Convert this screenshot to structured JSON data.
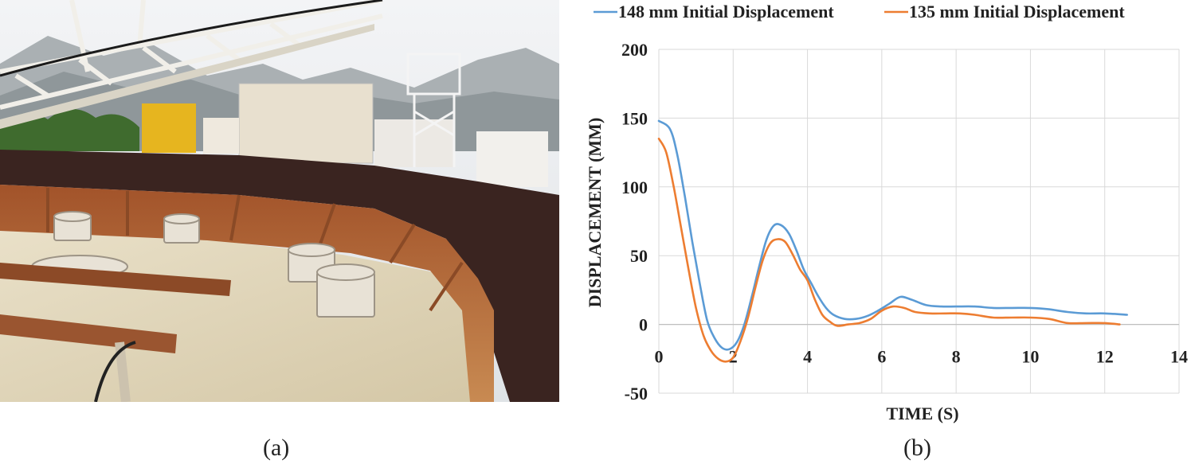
{
  "captions": {
    "a": "(a)",
    "b": "(b)"
  },
  "chart_data": {
    "type": "line",
    "xlabel": "TIME (S)",
    "ylabel": "DISPLACEMENT (MM)",
    "xlim": [
      0,
      14
    ],
    "ylim": [
      -50,
      200
    ],
    "xticks": [
      0,
      2,
      4,
      6,
      8,
      10,
      12,
      14
    ],
    "yticks": [
      -50,
      0,
      50,
      100,
      150,
      200
    ],
    "grid": true,
    "legend_position": "top",
    "series": [
      {
        "name": "148 mm Initial Displacement",
        "color": "#5b9bd5",
        "x": [
          0,
          0.3,
          0.5,
          0.7,
          0.9,
          1.1,
          1.3,
          1.5,
          1.7,
          1.9,
          2.1,
          2.3,
          2.5,
          2.7,
          2.9,
          3.1,
          3.3,
          3.5,
          3.7,
          3.9,
          4.1,
          4.3,
          4.5,
          4.7,
          5.0,
          5.3,
          5.6,
          5.9,
          6.2,
          6.5,
          6.8,
          7.2,
          7.6,
          8.0,
          8.5,
          9.0,
          9.5,
          10.0,
          10.5,
          11.0,
          11.5,
          12.0,
          12.6
        ],
        "y": [
          148,
          142,
          123,
          93,
          60,
          30,
          3,
          -10,
          -17,
          -18,
          -13,
          0,
          20,
          42,
          62,
          72,
          72,
          66,
          54,
          40,
          30,
          20,
          12,
          7,
          4,
          4,
          6,
          10,
          15,
          20,
          18,
          14,
          13,
          13,
          13,
          12,
          12,
          12,
          11,
          9,
          8,
          8,
          7
        ]
      },
      {
        "name": "135 mm Initial Displacement",
        "color": "#ed7d31",
        "x": [
          0,
          0.2,
          0.4,
          0.6,
          0.8,
          1.0,
          1.2,
          1.4,
          1.6,
          1.8,
          2.0,
          2.2,
          2.4,
          2.6,
          2.8,
          3.0,
          3.2,
          3.4,
          3.6,
          3.8,
          4.0,
          4.2,
          4.4,
          4.6,
          4.8,
          5.1,
          5.4,
          5.7,
          6.0,
          6.3,
          6.6,
          6.9,
          7.3,
          7.7,
          8.1,
          8.5,
          9.0,
          9.5,
          10.0,
          10.5,
          11.0,
          11.5,
          12.0,
          12.4
        ],
        "y": [
          135,
          125,
          100,
          70,
          40,
          12,
          -8,
          -19,
          -25,
          -27,
          -24,
          -12,
          5,
          27,
          47,
          59,
          62,
          60,
          51,
          40,
          32,
          18,
          7,
          2,
          -1,
          0,
          1,
          4,
          10,
          13,
          12,
          9,
          8,
          8,
          8,
          7,
          5,
          5,
          5,
          4,
          1,
          1,
          1,
          0
        ]
      }
    ]
  }
}
